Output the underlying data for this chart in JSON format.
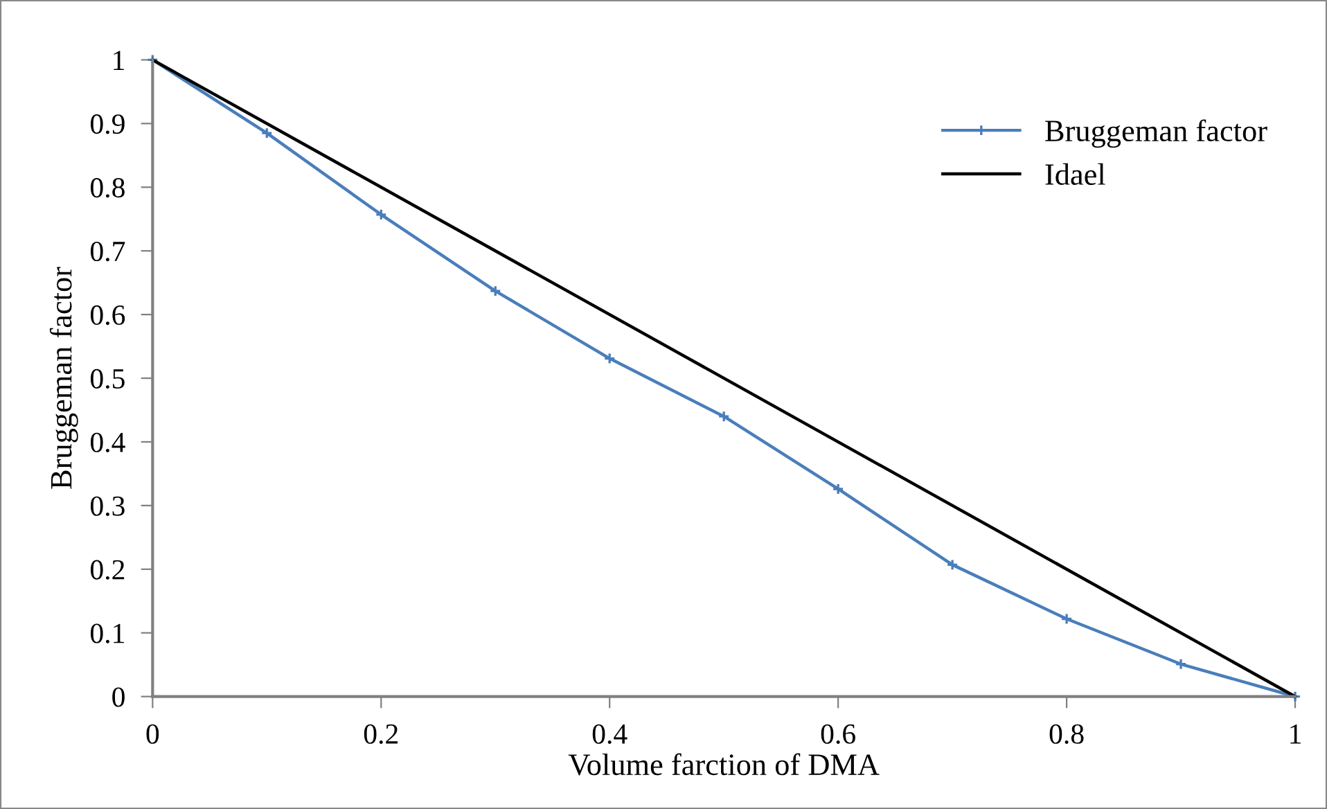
{
  "chart_data": {
    "type": "line",
    "xlabel": "Volume farction of DMA",
    "ylabel": "Bruggeman factor",
    "x": [
      0,
      0.1,
      0.2,
      0.3,
      0.4,
      0.5,
      0.6,
      0.7,
      0.8,
      0.9,
      1
    ],
    "series": [
      {
        "name": "Bruggeman factor",
        "color": "#4a7ebb",
        "marker": "cross",
        "values": [
          1,
          0.885,
          0.757,
          0.637,
          0.531,
          0.44,
          0.326,
          0.207,
          0.122,
          0.051,
          0
        ]
      },
      {
        "name": "Idael",
        "color": "#000000",
        "x": [
          0,
          1
        ],
        "values": [
          1,
          0
        ]
      }
    ],
    "xlim": [
      0,
      1
    ],
    "ylim": [
      0,
      1
    ],
    "xticks": [
      0,
      0.2,
      0.4,
      0.6,
      0.8,
      1
    ],
    "yticks": [
      0,
      0.1,
      0.2,
      0.3,
      0.4,
      0.5,
      0.6,
      0.7,
      0.8,
      0.9,
      1
    ],
    "grid": false,
    "legend": "top right"
  }
}
